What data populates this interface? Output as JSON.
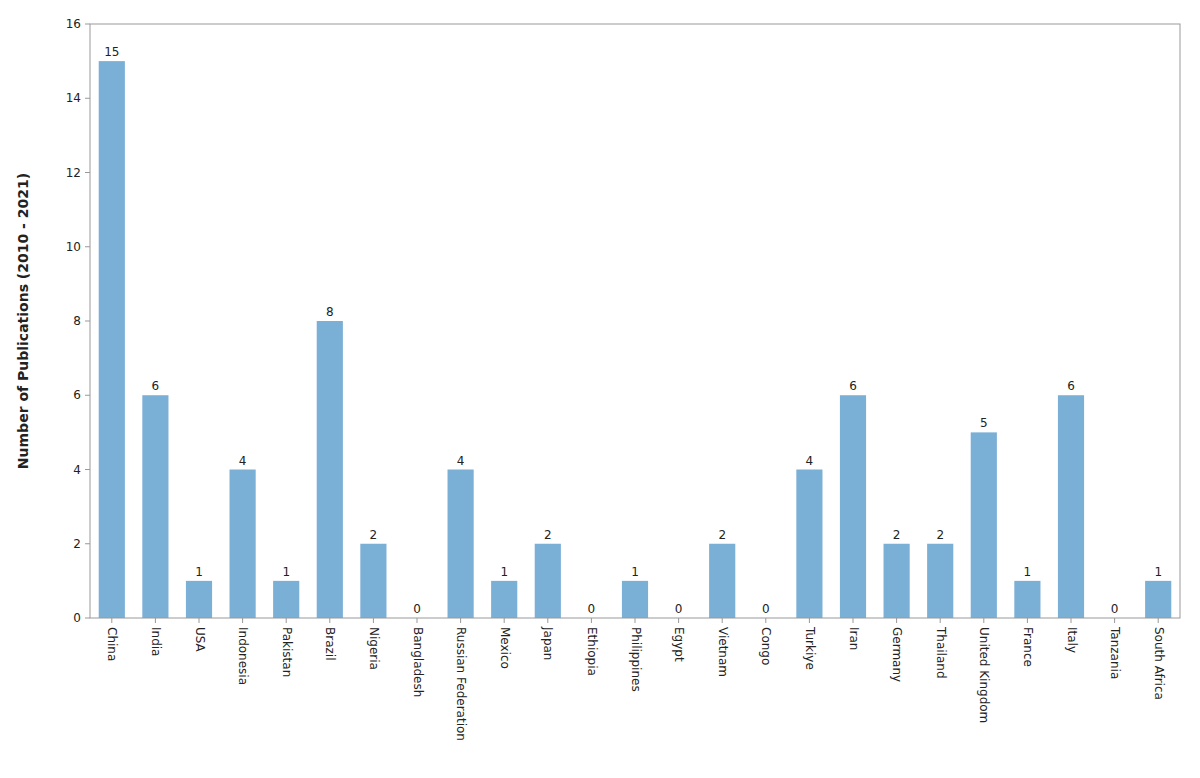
{
  "chart_data": {
    "type": "bar",
    "ylabel": "Number of Publications (2010 - 2021)",
    "categories": [
      "China",
      "India",
      "USA",
      "Indonesia",
      "Pakistan",
      "Brazil",
      "Nigeria",
      "Bangladesh",
      "Russian Federation",
      "Mexico",
      "Japan",
      "Ethiopia",
      "Philippines",
      "Egypt",
      "Vietnam",
      "Congo",
      "Turkiye",
      "Iran",
      "Germany",
      "Thailand",
      "United Kingdom",
      "France",
      "Italy",
      "Tanzania",
      "South Africa"
    ],
    "values": [
      15,
      6,
      1,
      4,
      1,
      8,
      2,
      0,
      4,
      1,
      2,
      0,
      1,
      0,
      2,
      0,
      4,
      6,
      2,
      2,
      5,
      1,
      6,
      0,
      1
    ],
    "color": "#7aafd6",
    "ylim": [
      0,
      16
    ],
    "yticks": [
      0,
      2,
      4,
      6,
      8,
      10,
      12,
      14,
      16
    ],
    "grid": false,
    "data_labels": true
  }
}
